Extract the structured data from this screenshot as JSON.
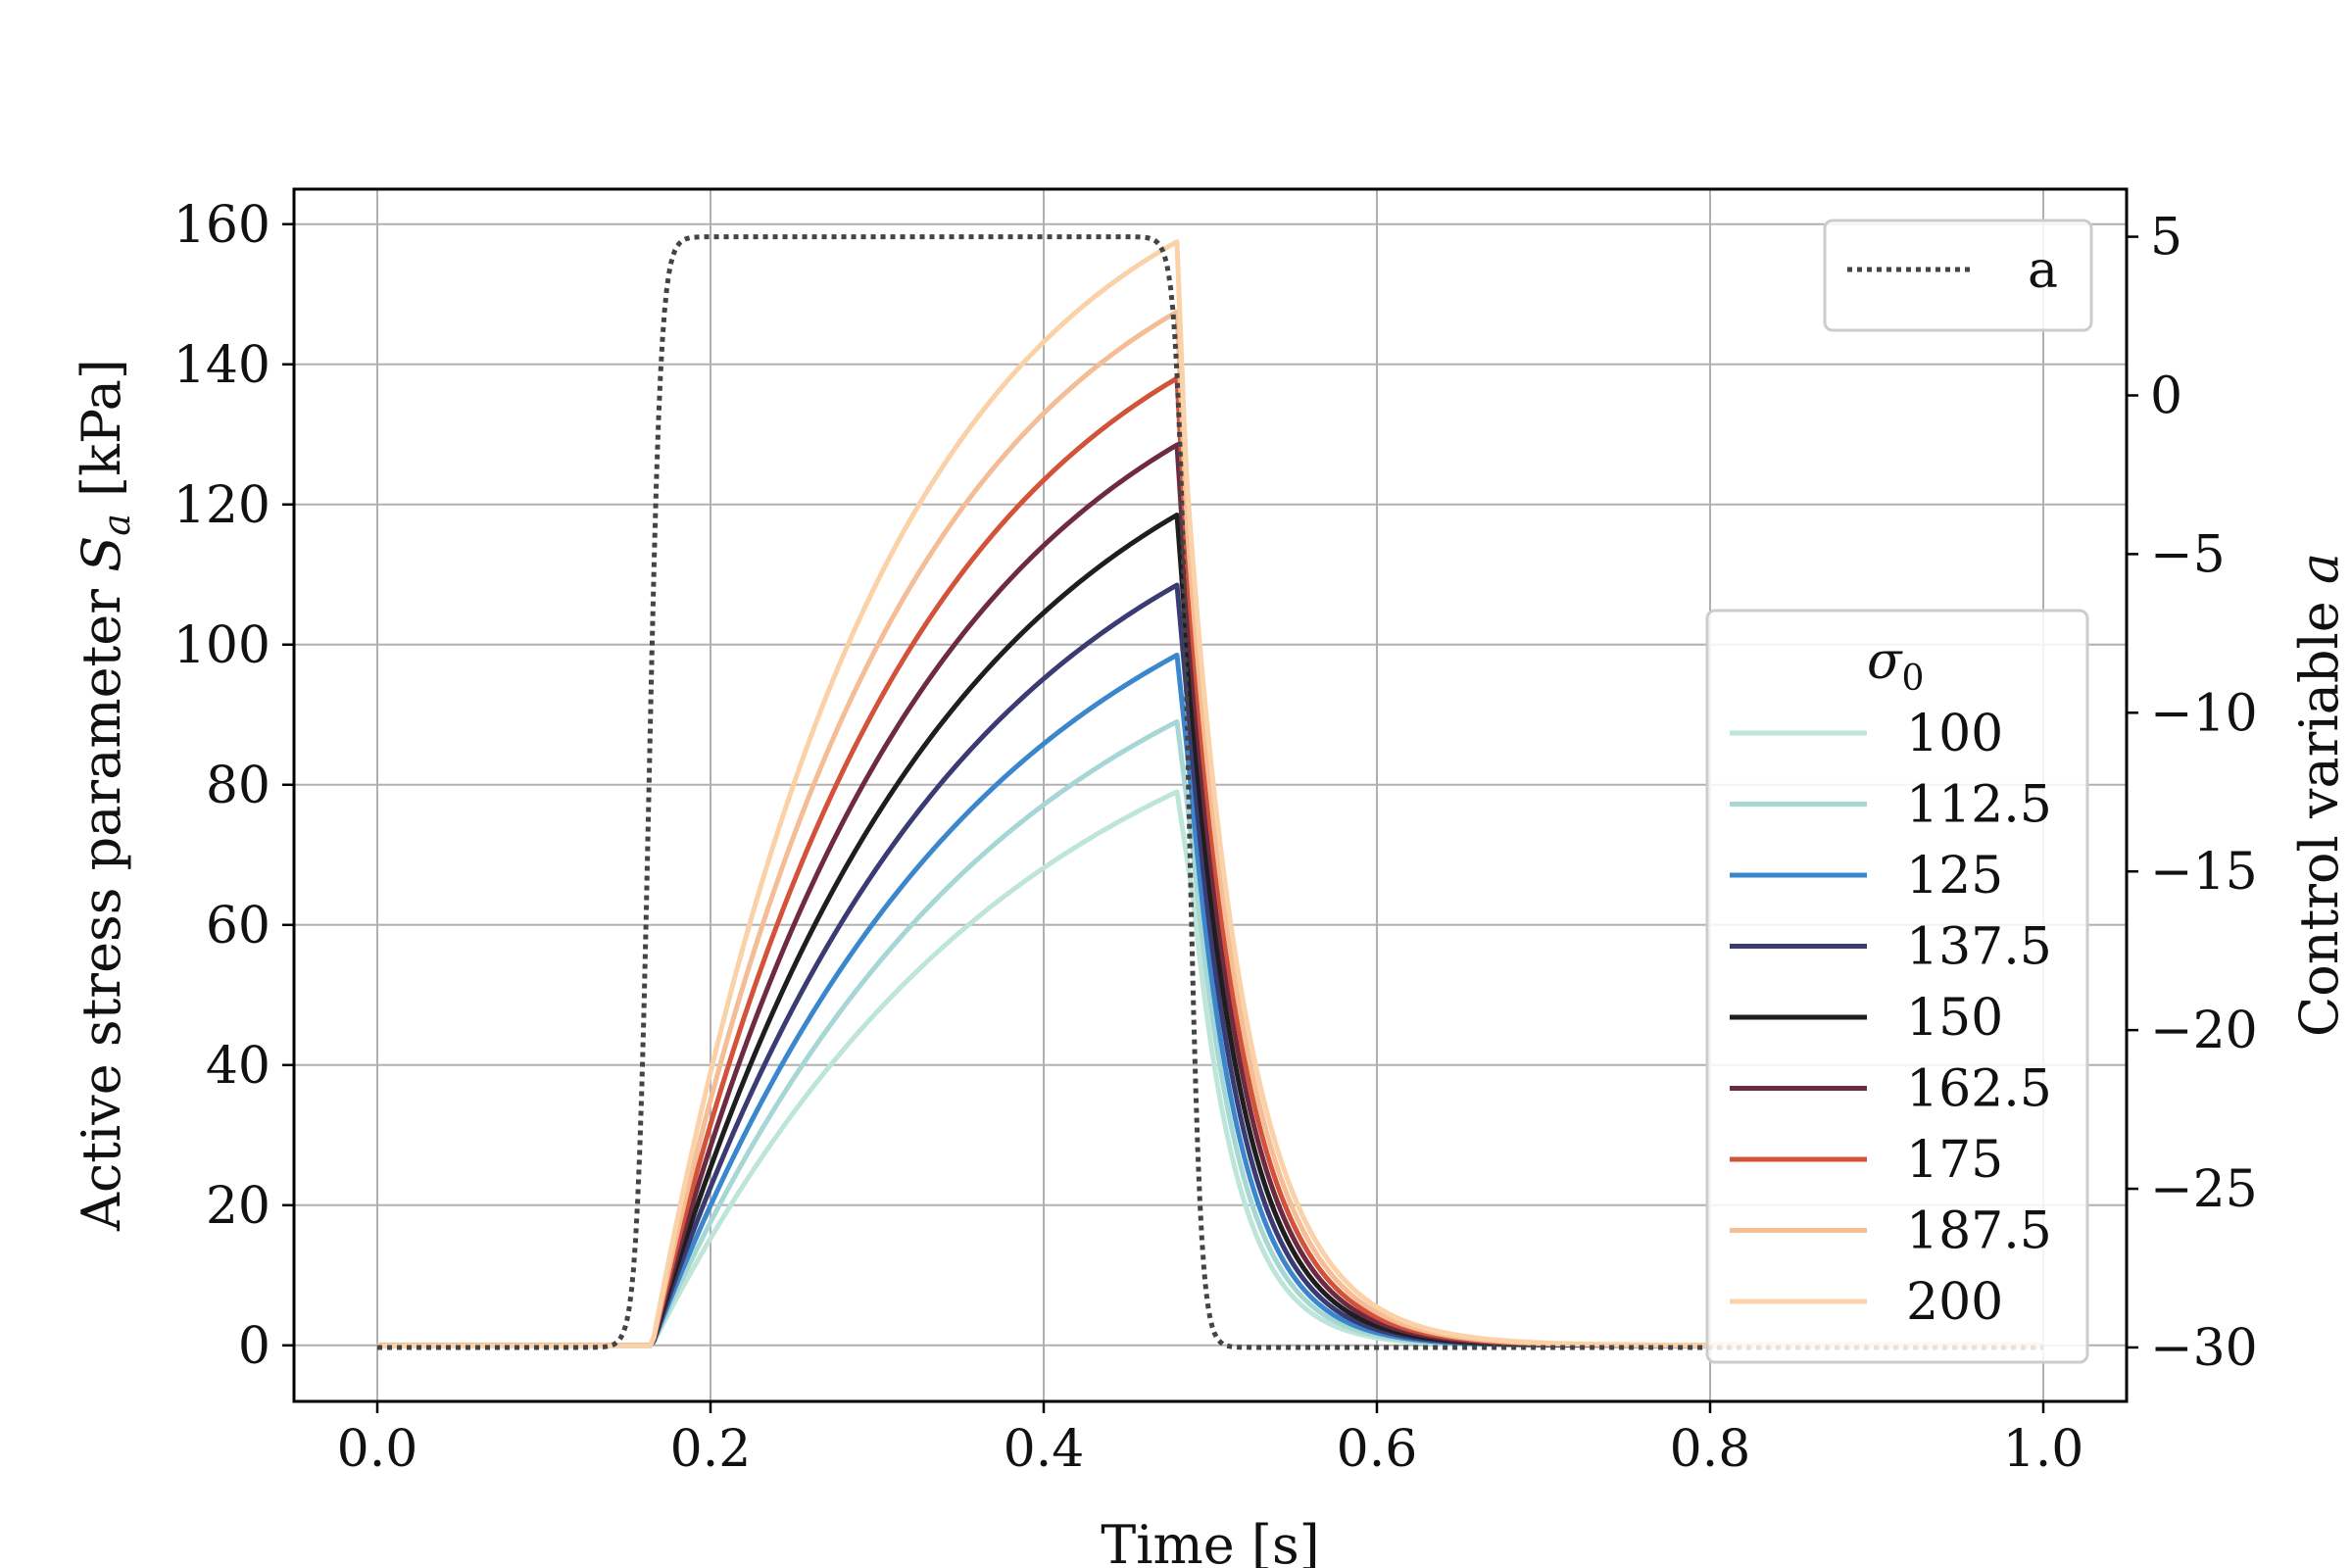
{
  "chart_data": {
    "type": "line",
    "xlabel": "Time [s]",
    "ylabel_left": "Active stress parameter S_a [kPa]",
    "ylabel_left_main": "Active stress parameter ",
    "ylabel_left_sym": "S",
    "ylabel_left_sub": "a",
    "ylabel_left_unit": " [kPa]",
    "ylabel_right": "Control variable a",
    "ylabel_right_main": "Control variable ",
    "ylabel_right_sym": "a",
    "xlim": [
      -0.05,
      1.05
    ],
    "ylim_left": [
      -8,
      165
    ],
    "ylim_right": [
      -31.7,
      6.5
    ],
    "grid": true,
    "x_ticks": [
      0.0,
      0.2,
      0.4,
      0.6,
      0.8,
      1.0
    ],
    "x_tick_labels": [
      "0.0",
      "0.2",
      "0.4",
      "0.6",
      "0.8",
      "1.0"
    ],
    "y_left_ticks": [
      0,
      20,
      40,
      60,
      80,
      100,
      120,
      140,
      160
    ],
    "y_left_tick_labels": [
      "0",
      "20",
      "40",
      "60",
      "80",
      "100",
      "120",
      "140",
      "160"
    ],
    "y_right_ticks": [
      5,
      0,
      -5,
      -10,
      -15,
      -20,
      -25,
      -30
    ],
    "y_right_tick_labels": [
      "5",
      "0",
      "−5",
      "−10",
      "−15",
      "−20",
      "−25",
      "−30"
    ],
    "control_series": {
      "name": "a",
      "axis": "right",
      "style": "dotted",
      "color": "#444444",
      "low": -30,
      "high": 5,
      "t_rise": 0.163,
      "t_fall": 0.487,
      "t_start": 0.0,
      "t_end": 1.0
    },
    "legend_control_label": "a",
    "legend_control_position": "top-right",
    "legend_sigma_title": "σ",
    "legend_sigma_sub": "0",
    "legend_sigma_position": "lower-right",
    "activation_start": 0.165,
    "activation_peak_time": 0.48,
    "series": [
      {
        "name": "100",
        "color": "#bde5d8",
        "peak": 79
      },
      {
        "name": "112.5",
        "color": "#a7d7d4",
        "peak": 89
      },
      {
        "name": "125",
        "color": "#3a87cd",
        "peak": 98.5
      },
      {
        "name": "137.5",
        "color": "#3b3b74",
        "peak": 108.5
      },
      {
        "name": "150",
        "color": "#1e1e1e",
        "peak": 118.5
      },
      {
        "name": "162.5",
        "color": "#6e2a40",
        "peak": 128.5
      },
      {
        "name": "175",
        "color": "#d3523a",
        "peak": 138
      },
      {
        "name": "187.5",
        "color": "#f5bd95",
        "peak": 147.5
      },
      {
        "name": "200",
        "color": "#fbd1a7",
        "peak": 157.5
      }
    ]
  }
}
